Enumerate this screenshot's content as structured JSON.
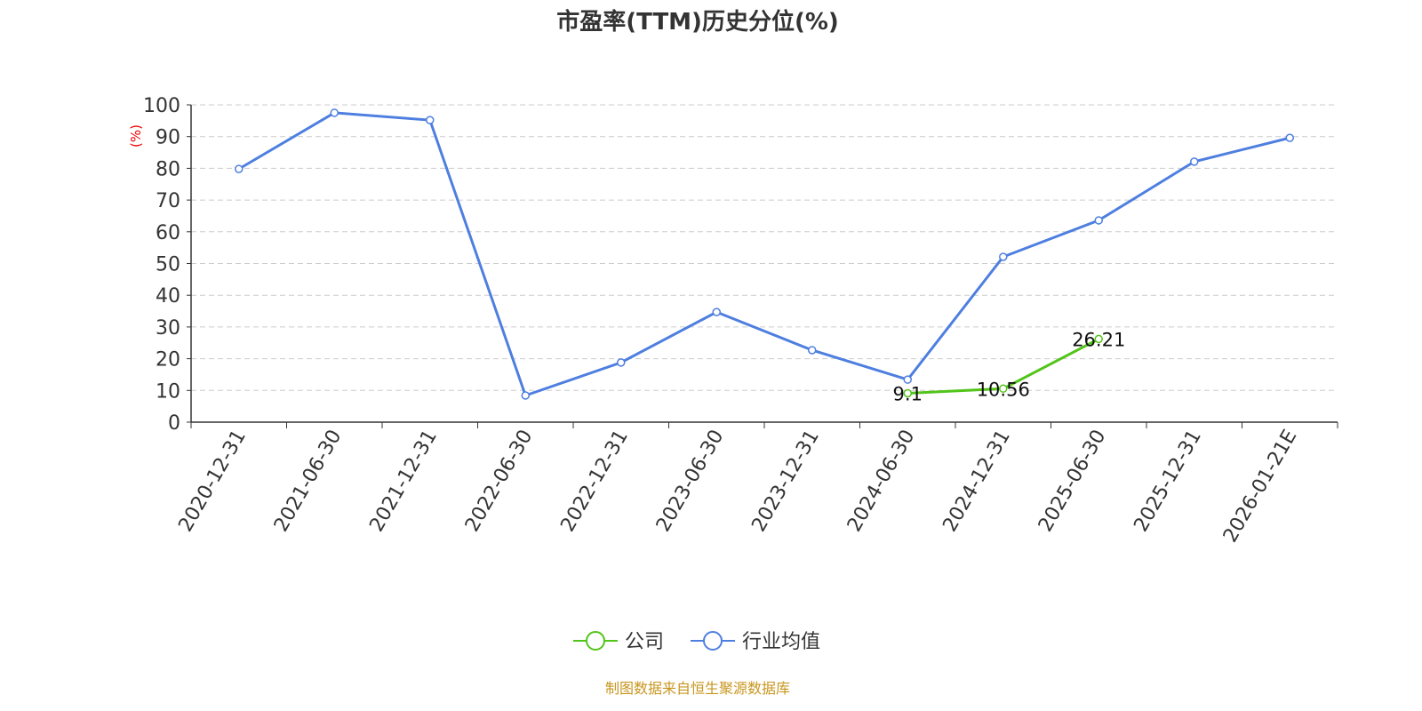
{
  "chart_data": {
    "type": "line",
    "title": "市盈率(TTM)历史分位(%)",
    "ylabel": "(%)",
    "xlabel": "",
    "ylim": [
      0,
      100
    ],
    "yticks": [
      0,
      10,
      20,
      30,
      40,
      50,
      60,
      70,
      80,
      90,
      100
    ],
    "grid": true,
    "legend_placement": "bottom",
    "categories": [
      "2020-12-31",
      "2021-06-30",
      "2021-12-31",
      "2022-06-30",
      "2022-12-31",
      "2023-06-30",
      "2023-12-31",
      "2024-06-30",
      "2024-12-31",
      "2025-06-30",
      "2025-12-31",
      "2026-01-21E"
    ],
    "series": [
      {
        "name": "公司",
        "color": "#52c41a",
        "values": [
          null,
          null,
          null,
          null,
          null,
          null,
          null,
          9.1,
          10.56,
          26.21,
          null,
          null
        ],
        "labels": true
      },
      {
        "name": "行业均值",
        "color": "#4e7fe0",
        "values": [
          79.8,
          97.5,
          95.2,
          8.4,
          18.8,
          34.7,
          22.7,
          13.4,
          52.1,
          63.6,
          82.1,
          89.6
        ],
        "labels": false
      }
    ],
    "source": "制图数据来自恒生聚源数据库"
  }
}
